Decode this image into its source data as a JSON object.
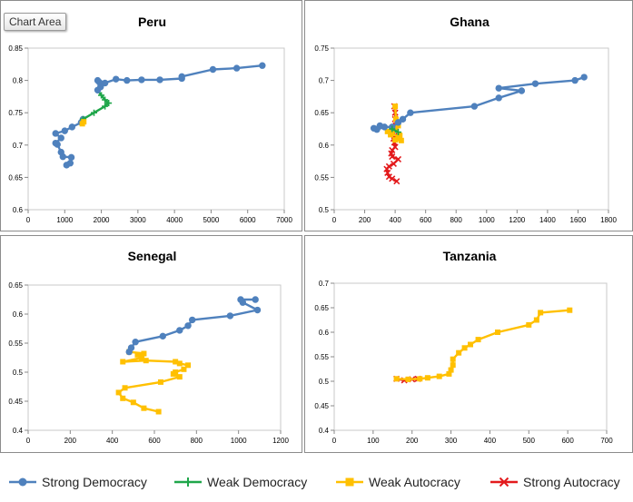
{
  "tooltip": "Chart Area",
  "legend": [
    {
      "name": "Strong Democracy",
      "color": "#4f81bd",
      "marker": "circle"
    },
    {
      "name": "Weak Democracy",
      "color": "#1fa64a",
      "marker": "plus"
    },
    {
      "name": "Weak Autocracy",
      "color": "#ffc000",
      "marker": "square"
    },
    {
      "name": "Strong Autocracy",
      "color": "#e31a1c",
      "marker": "x"
    }
  ],
  "chart_data": [
    {
      "type": "line",
      "title": "Peru",
      "xlim": [
        0,
        7000
      ],
      "ylim": [
        0.6,
        0.85
      ],
      "xticks": [
        0,
        1000,
        2000,
        3000,
        4000,
        5000,
        6000,
        7000
      ],
      "yticks": [
        0.6,
        0.65,
        0.7,
        0.75,
        0.8,
        0.85
      ],
      "ytick_labels": [
        "0.6",
        "0.65",
        "0.7",
        "0.75",
        "0.8",
        "0.85"
      ],
      "series": [
        {
          "name": "Strong Democracy",
          "color": "#4f81bd",
          "marker": "circle",
          "points": [
            [
              1050,
              0.669
            ],
            [
              1150,
              0.672
            ],
            [
              1180,
              0.681
            ],
            [
              950,
              0.682
            ],
            [
              900,
              0.689
            ],
            [
              800,
              0.701
            ],
            [
              750,
              0.703
            ],
            [
              900,
              0.711
            ],
            [
              750,
              0.718
            ],
            [
              1000,
              0.722
            ],
            [
              1200,
              0.728
            ],
            [
              1450,
              0.735
            ],
            [
              1500,
              0.74
            ]
          ]
        },
        {
          "name": "Weak Democracy",
          "color": "#1fa64a",
          "marker": "plus",
          "points": [
            [
              1500,
              0.74
            ],
            [
              1800,
              0.75
            ],
            [
              2100,
              0.76
            ],
            [
              2200,
              0.765
            ],
            [
              2100,
              0.77
            ],
            [
              2000,
              0.777
            ],
            [
              1900,
              0.785
            ]
          ]
        },
        {
          "name": "Strong Democracy",
          "color": "#4f81bd",
          "marker": "circle",
          "points": [
            [
              1900,
              0.785
            ],
            [
              1980,
              0.79
            ],
            [
              1950,
              0.797
            ],
            [
              1900,
              0.8
            ],
            [
              2100,
              0.796
            ],
            [
              2400,
              0.802
            ],
            [
              2700,
              0.8
            ],
            [
              3100,
              0.801
            ],
            [
              3600,
              0.801
            ],
            [
              4200,
              0.803
            ],
            [
              4200,
              0.806
            ],
            [
              5050,
              0.817
            ],
            [
              5700,
              0.819
            ],
            [
              6400,
              0.823
            ]
          ]
        },
        {
          "name": "Weak Autocracy",
          "color": "#ffc000",
          "marker": "square",
          "points": [
            [
              1480,
              0.733
            ],
            [
              1520,
              0.736
            ]
          ]
        }
      ]
    },
    {
      "type": "line",
      "title": "Ghana",
      "xlim": [
        0,
        1800
      ],
      "ylim": [
        0.5,
        0.75
      ],
      "xticks": [
        0,
        200,
        400,
        600,
        800,
        1000,
        1200,
        1400,
        1600,
        1800
      ],
      "yticks": [
        0.5,
        0.55,
        0.6,
        0.65,
        0.7,
        0.75
      ],
      "ytick_labels": [
        "0.5",
        "0.55",
        "0.6",
        "0.65",
        "0.7",
        "0.75"
      ],
      "series": [
        {
          "name": "Strong Autocracy",
          "color": "#e31a1c",
          "marker": "x",
          "points": [
            [
              410,
              0.544
            ],
            [
              380,
              0.548
            ],
            [
              360,
              0.551
            ],
            [
              350,
              0.557
            ],
            [
              345,
              0.563
            ],
            [
              360,
              0.567
            ],
            [
              390,
              0.571
            ],
            [
              420,
              0.578
            ],
            [
              380,
              0.582
            ],
            [
              375,
              0.587
            ],
            [
              380,
              0.592
            ],
            [
              400,
              0.597
            ],
            [
              395,
              0.604
            ],
            [
              390,
              0.61
            ],
            [
              395,
              0.614
            ],
            [
              390,
              0.618
            ],
            [
              405,
              0.63
            ],
            [
              400,
              0.64
            ],
            [
              400,
              0.65
            ],
            [
              395,
              0.66
            ]
          ]
        },
        {
          "name": "Weak Autocracy",
          "color": "#ffc000",
          "marker": "square",
          "points": [
            [
              400,
              0.66
            ],
            [
              405,
              0.64
            ],
            [
              420,
              0.63
            ],
            [
              400,
              0.625
            ],
            [
              380,
              0.62
            ],
            [
              350,
              0.621
            ],
            [
              370,
              0.616
            ],
            [
              430,
              0.614
            ],
            [
              420,
              0.61
            ],
            [
              400,
              0.608
            ],
            [
              440,
              0.607
            ],
            [
              430,
              0.615
            ]
          ]
        },
        {
          "name": "Strong Democracy",
          "color": "#4f81bd",
          "marker": "circle",
          "points": [
            [
              260,
              0.626
            ],
            [
              300,
              0.63
            ],
            [
              280,
              0.624
            ],
            [
              330,
              0.628
            ],
            [
              380,
              0.628
            ],
            [
              420,
              0.635
            ],
            [
              450,
              0.64
            ],
            [
              500,
              0.65
            ],
            [
              920,
              0.66
            ],
            [
              1080,
              0.673
            ],
            [
              1230,
              0.684
            ],
            [
              1080,
              0.688
            ],
            [
              1320,
              0.695
            ],
            [
              1580,
              0.7
            ],
            [
              1640,
              0.705
            ]
          ]
        },
        {
          "name": "Weak Democracy",
          "color": "#1fa64a",
          "marker": "plus",
          "points": [
            [
              380,
              0.625
            ],
            [
              420,
              0.62
            ]
          ]
        }
      ]
    },
    {
      "type": "line",
      "title": "Senegal",
      "xlim": [
        0,
        1200
      ],
      "ylim": [
        0.4,
        0.65
      ],
      "xticks": [
        0,
        200,
        400,
        600,
        800,
        1000,
        1200
      ],
      "yticks": [
        0.4,
        0.45,
        0.5,
        0.55,
        0.6,
        0.65
      ],
      "ytick_labels": [
        "0.4",
        "0.45",
        "0.5",
        "0.55",
        "0.6",
        "0.65"
      ],
      "series": [
        {
          "name": "Weak Autocracy",
          "color": "#ffc000",
          "marker": "square",
          "points": [
            [
              620,
              0.432
            ],
            [
              550,
              0.438
            ],
            [
              500,
              0.448
            ],
            [
              450,
              0.455
            ],
            [
              430,
              0.465
            ],
            [
              460,
              0.473
            ],
            [
              630,
              0.483
            ],
            [
              720,
              0.492
            ],
            [
              690,
              0.497
            ],
            [
              700,
              0.5
            ],
            [
              740,
              0.505
            ],
            [
              760,
              0.512
            ],
            [
              720,
              0.515
            ],
            [
              700,
              0.518
            ],
            [
              560,
              0.52
            ],
            [
              450,
              0.518
            ],
            [
              540,
              0.525
            ],
            [
              520,
              0.53
            ],
            [
              550,
              0.532
            ],
            [
              480,
              0.535
            ]
          ]
        },
        {
          "name": "Strong Democracy",
          "color": "#4f81bd",
          "marker": "circle",
          "points": [
            [
              480,
              0.535
            ],
            [
              490,
              0.542
            ],
            [
              510,
              0.552
            ],
            [
              640,
              0.562
            ],
            [
              720,
              0.572
            ],
            [
              760,
              0.58
            ],
            [
              780,
              0.59
            ],
            [
              960,
              0.597
            ],
            [
              1090,
              0.607
            ],
            [
              1020,
              0.62
            ],
            [
              1010,
              0.625
            ],
            [
              1080,
              0.625
            ]
          ]
        }
      ]
    },
    {
      "type": "line",
      "title": "Tanzania",
      "xlim": [
        0,
        700
      ],
      "ylim": [
        0.4,
        0.7
      ],
      "xticks": [
        0,
        100,
        200,
        300,
        400,
        500,
        600,
        700
      ],
      "yticks": [
        0.4,
        0.45,
        0.5,
        0.55,
        0.6,
        0.65,
        0.7
      ],
      "ytick_labels": [
        "0.4",
        "0.45",
        "0.5",
        "0.55",
        "0.6",
        "0.65",
        "0.7"
      ],
      "series": [
        {
          "name": "Strong Autocracy",
          "color": "#e31a1c",
          "marker": "x",
          "points": [
            [
              160,
              0.505
            ],
            [
              180,
              0.502
            ],
            [
              200,
              0.504
            ],
            [
              215,
              0.505
            ]
          ]
        },
        {
          "name": "Weak Autocracy",
          "color": "#ffc000",
          "marker": "square",
          "points": [
            [
              160,
              0.505
            ],
            [
              190,
              0.504
            ],
            [
              220,
              0.505
            ],
            [
              240,
              0.507
            ],
            [
              270,
              0.51
            ],
            [
              295,
              0.515
            ],
            [
              300,
              0.523
            ],
            [
              305,
              0.533
            ],
            [
              305,
              0.545
            ],
            [
              320,
              0.558
            ],
            [
              335,
              0.568
            ],
            [
              350,
              0.575
            ],
            [
              370,
              0.585
            ],
            [
              420,
              0.6
            ],
            [
              500,
              0.615
            ],
            [
              520,
              0.625
            ],
            [
              530,
              0.64
            ],
            [
              605,
              0.645
            ]
          ]
        }
      ]
    }
  ]
}
